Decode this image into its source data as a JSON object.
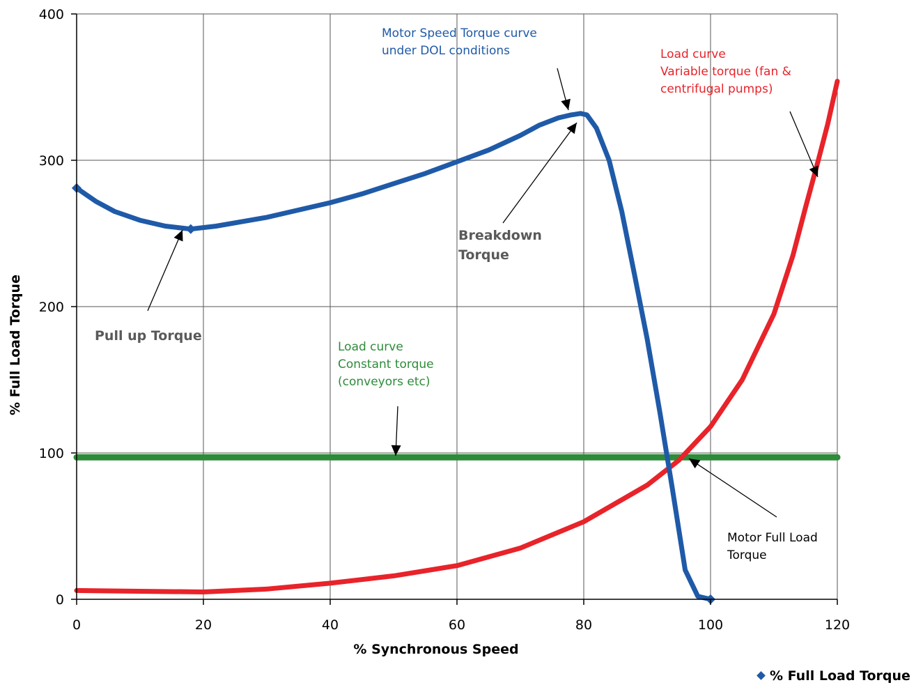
{
  "chart_data": {
    "type": "line",
    "xlabel": "% Synchronous Speed",
    "ylabel": "% Full Load Torque",
    "xlim": [
      0,
      120
    ],
    "ylim": [
      0,
      400
    ],
    "x_ticks": [
      "0",
      "20",
      "40",
      "60",
      "80",
      "100",
      "120"
    ],
    "y_ticks": [
      "0",
      "100",
      "200",
      "300",
      "400"
    ],
    "grid": true,
    "legend": {
      "position": "bottom-right",
      "entries": [
        "% Full Load Torque"
      ]
    },
    "series": [
      {
        "name": "% Full Load Torque",
        "color": "#1f5aa8",
        "x": [
          0,
          3,
          6,
          10,
          14,
          18,
          22,
          26,
          30,
          35,
          40,
          45,
          50,
          55,
          60,
          65,
          70,
          73,
          76,
          78,
          79.5,
          80.5,
          82,
          84,
          86,
          88,
          90,
          92,
          94,
          96,
          98,
          100
        ],
        "y": [
          281,
          272,
          265,
          259,
          255,
          253,
          255,
          258,
          261,
          266,
          271,
          277,
          284,
          291,
          299,
          307,
          317,
          324,
          329,
          331,
          332,
          331,
          322,
          300,
          265,
          222,
          178,
          128,
          75,
          20,
          2,
          0
        ]
      },
      {
        "color": "#e8232a",
        "x": [
          0,
          10,
          20,
          30,
          40,
          50,
          60,
          70,
          80,
          90,
          95,
          100,
          105,
          110,
          113,
          115,
          117,
          118.5,
          120
        ],
        "y": [
          6,
          5.5,
          5,
          7,
          11,
          16,
          23,
          35,
          53,
          78,
          95,
          118,
          150,
          195,
          235,
          268,
          300,
          325,
          354
        ]
      },
      {
        "color": "#2e8b3a",
        "x": [
          0,
          120
        ],
        "y": [
          97,
          97
        ]
      }
    ],
    "annotations": {
      "motor_curve": [
        "Motor Speed Torque curve",
        "under DOL conditions"
      ],
      "variable_load": [
        "Load curve",
        "Variable torque (fan &",
        "centrifugal pumps)"
      ],
      "breakdown": [
        "Breakdown",
        "Torque"
      ],
      "pull_up": [
        "Pull up Torque"
      ],
      "constant_load": [
        "Load curve",
        "Constant torque",
        "(conveyors etc)"
      ],
      "full_load": [
        "Motor Full Load",
        "Torque"
      ]
    },
    "colors": {
      "motor": "#1f5aa8",
      "variable": "#e8232a",
      "constant": "#2e8b3a",
      "grey_text": "#595959"
    }
  }
}
